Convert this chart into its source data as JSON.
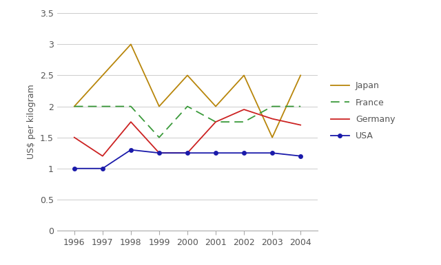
{
  "years": [
    1996,
    1997,
    1998,
    1999,
    2000,
    2001,
    2002,
    2003,
    2004
  ],
  "japan": [
    2.0,
    2.5,
    3.0,
    2.0,
    2.5,
    2.0,
    2.5,
    1.5,
    2.5
  ],
  "france": [
    2.0,
    2.0,
    2.0,
    1.5,
    2.0,
    1.75,
    1.75,
    2.0,
    2.0
  ],
  "germany": [
    1.5,
    1.2,
    1.75,
    1.25,
    1.25,
    1.75,
    1.95,
    1.8,
    1.7
  ],
  "usa": [
    1.0,
    1.0,
    1.3,
    1.25,
    1.25,
    1.25,
    1.25,
    1.25,
    1.2
  ],
  "japan_color": "#b8860b",
  "france_color": "#3a9a3a",
  "germany_color": "#cc2222",
  "usa_color": "#1a1aaa",
  "ylabel": "US$ per kilogram",
  "ylim": [
    0,
    3.5
  ],
  "yticks": [
    0,
    0.5,
    1.0,
    1.5,
    2.0,
    2.5,
    3.0,
    3.5
  ],
  "background_color": "#ffffff",
  "grid_color": "#cccccc",
  "legend_labels": [
    "Japan",
    "France",
    "Germany",
    "USA"
  ]
}
